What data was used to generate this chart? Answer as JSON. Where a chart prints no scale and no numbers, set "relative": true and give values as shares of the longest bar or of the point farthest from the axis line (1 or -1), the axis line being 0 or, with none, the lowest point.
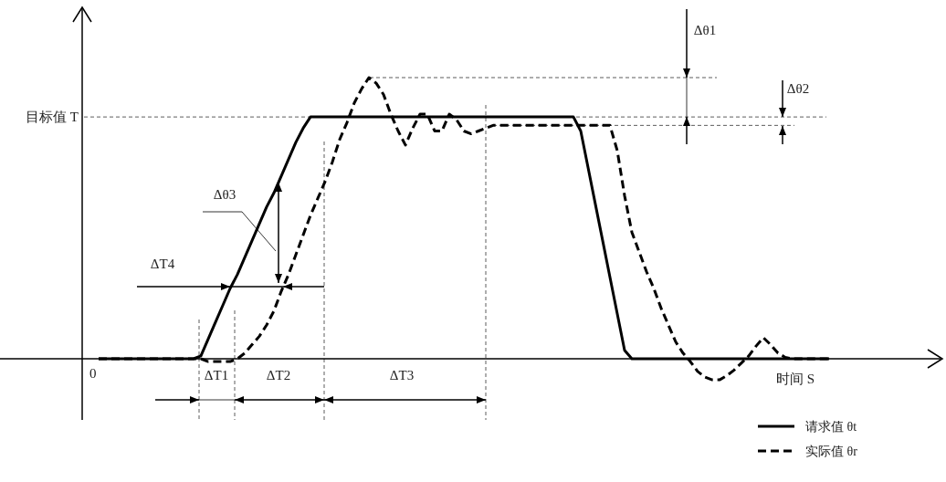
{
  "chart_data": {
    "type": "line",
    "relative": true,
    "xlabel": "时间 S",
    "legend": "bottom right",
    "categories": [
      null,
      null,
      null,
      null,
      null,
      null,
      null,
      null,
      null,
      null,
      null,
      null,
      null,
      null,
      null,
      null,
      null,
      null,
      null,
      null,
      null,
      null,
      null,
      null,
      null,
      null,
      null,
      null,
      null,
      null,
      null,
      null,
      null,
      null,
      null,
      null,
      null,
      null,
      null,
      null,
      null,
      null,
      null,
      null,
      null,
      null,
      null,
      null,
      null,
      null,
      null,
      null,
      null,
      null,
      null,
      null,
      null,
      null,
      null,
      null,
      null,
      null,
      null,
      null,
      null,
      null,
      null,
      null,
      null,
      null,
      null,
      null,
      null,
      null,
      null,
      null,
      null,
      null,
      null,
      null,
      null,
      null,
      null,
      null,
      null,
      null,
      null,
      null,
      null,
      null,
      null,
      null,
      null,
      null,
      null,
      null,
      null,
      null,
      null,
      null,
      null
    ],
    "series": [
      {
        "name": "请求值 θt",
        "color": "#000000",
        "line_style": "solid",
        "values": [
          0,
          0,
          0,
          0,
          0,
          0,
          0,
          0,
          0,
          0,
          0,
          0,
          0,
          0,
          0.01,
          0.07,
          0.13,
          0.19,
          0.25,
          0.3,
          0.36,
          0.42,
          0.48,
          0.54,
          0.59,
          0.65,
          0.71,
          0.77,
          0.82,
          0.86,
          0.86,
          0.86,
          0.86,
          0.86,
          0.86,
          0.86,
          0.86,
          0.86,
          0.86,
          0.86,
          0.86,
          0.86,
          0.86,
          0.86,
          0.86,
          0.86,
          0.86,
          0.86,
          0.86,
          0.86,
          0.86,
          0.86,
          0.86,
          0.86,
          0.86,
          0.86,
          0.86,
          0.86,
          0.86,
          0.86,
          0.86,
          0.86,
          0.86,
          0.86,
          0.86,
          0.86,
          0.81,
          0.68,
          0.55,
          0.42,
          0.29,
          0.16,
          0.03,
          0,
          0,
          0,
          0,
          0,
          0,
          0,
          0,
          0,
          0,
          0,
          0,
          0,
          0,
          0,
          0,
          0,
          0,
          0,
          0,
          0,
          0,
          0,
          0,
          0,
          0,
          0,
          0
        ]
      },
      {
        "name": "实际值 θr",
        "color": "#000000",
        "line_style": "dashed",
        "values": [
          0,
          0,
          0,
          0,
          0,
          0,
          0,
          0,
          0,
          0,
          0,
          0,
          0,
          0,
          0,
          -0.01,
          -0.01,
          -0.01,
          -0.01,
          0,
          0.02,
          0.05,
          0.08,
          0.12,
          0.17,
          0.24,
          0.3,
          0.37,
          0.44,
          0.51,
          0.57,
          0.63,
          0.7,
          0.78,
          0.84,
          0.91,
          0.96,
          1,
          0.98,
          0.94,
          0.87,
          0.81,
          0.76,
          0.82,
          0.87,
          0.87,
          0.81,
          0.81,
          0.87,
          0.85,
          0.81,
          0.8,
          0.81,
          0.82,
          0.83,
          0.83,
          0.83,
          0.83,
          0.83,
          0.83,
          0.83,
          0.83,
          0.83,
          0.83,
          0.83,
          0.83,
          0.83,
          0.83,
          0.83,
          0.83,
          0.83,
          0.74,
          0.58,
          0.45,
          0.38,
          0.31,
          0.25,
          0.18,
          0.12,
          0.06,
          0.02,
          -0.01,
          -0.045,
          -0.065,
          -0.075,
          -0.075,
          -0.06,
          -0.04,
          -0.015,
          0.01,
          0.045,
          0.075,
          0.05,
          0.02,
          0.005,
          0,
          0,
          0,
          0,
          0,
          0
        ]
      }
    ],
    "ref_lines": [
      {
        "axis": "y",
        "value": 0.86,
        "label": "目标值 T"
      },
      {
        "axis": "y",
        "value": 1,
        "label": null
      },
      {
        "axis": "y",
        "value": 0.83,
        "label": null
      }
    ],
    "annotations": [
      "0",
      "ΔT1",
      "ΔT2",
      "ΔT3",
      "ΔT4",
      "Δθ1",
      "Δθ2",
      "Δθ3"
    ]
  }
}
